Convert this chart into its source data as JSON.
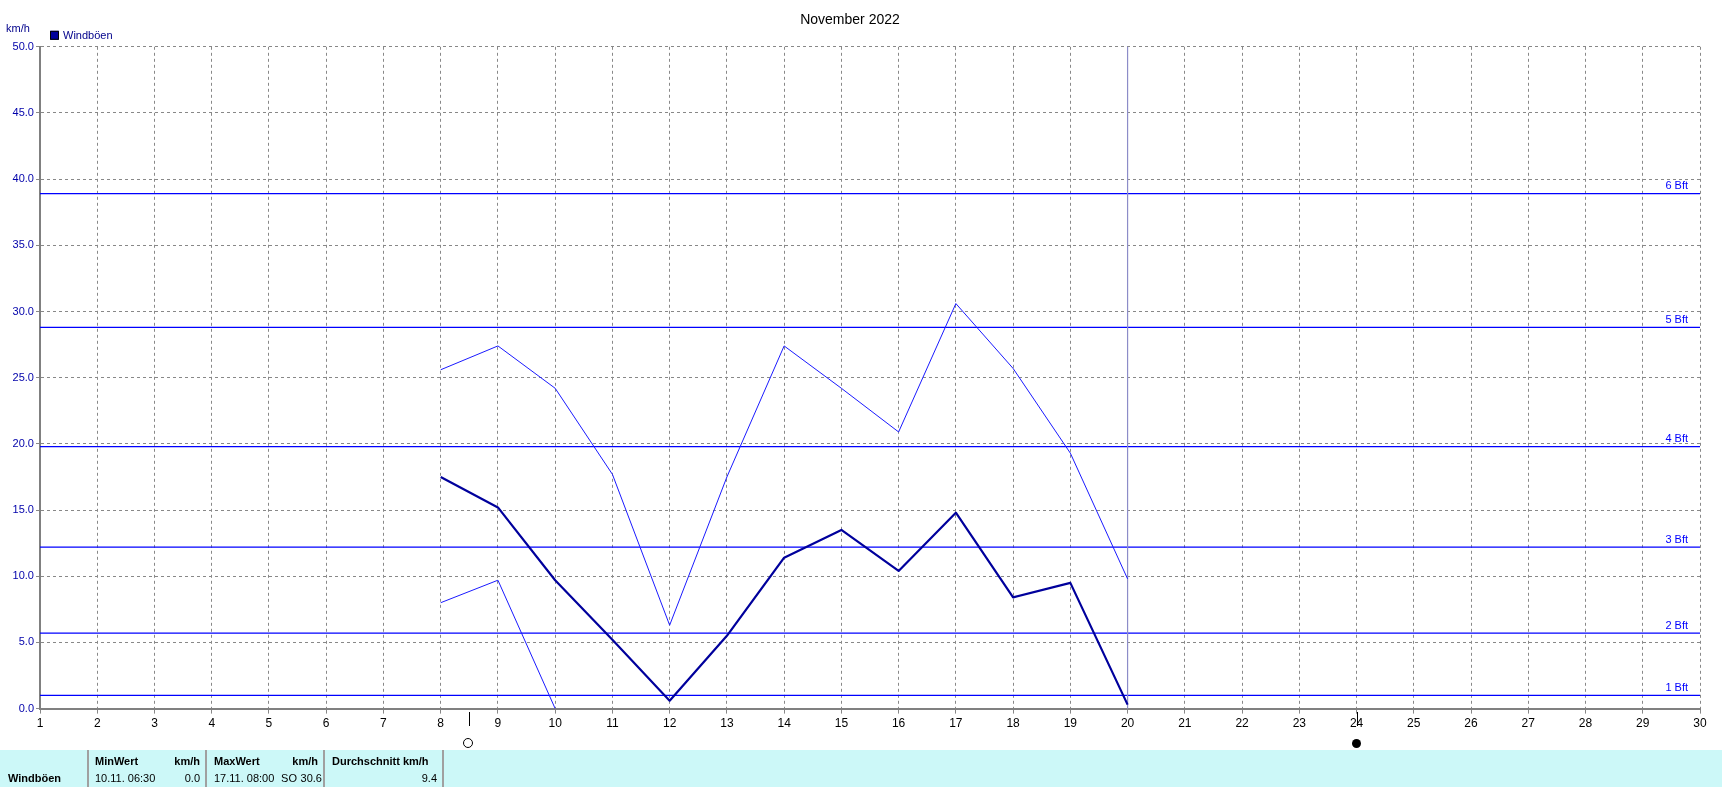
{
  "chart_data": {
    "type": "line",
    "title": "November 2022",
    "ylabel": "km/h",
    "x": [
      8,
      9,
      10,
      11,
      12,
      13,
      14,
      15,
      16,
      17,
      18,
      19,
      20
    ],
    "series": [
      {
        "color": "#1a1aff",
        "values": [
          25.6,
          27.4,
          24.2,
          17.7,
          6.3,
          17.5,
          27.4,
          24.2,
          20.9,
          30.6,
          25.7,
          19.3,
          9.8
        ]
      },
      {
        "name": "Windböen",
        "color": "#00009c",
        "values": [
          17.5,
          15.2,
          9.7,
          5.2,
          0.6,
          5.5,
          11.4,
          13.5,
          10.4,
          14.8,
          8.4,
          9.5,
          0.3
        ]
      },
      {
        "color": "#1a1aff",
        "x": [
          8,
          9,
          10
        ],
        "values": [
          8.0,
          9.7,
          0.0
        ]
      }
    ],
    "xlim": [
      1,
      30
    ],
    "xticks": [
      1,
      2,
      3,
      4,
      5,
      6,
      7,
      8,
      9,
      10,
      11,
      12,
      13,
      14,
      15,
      16,
      17,
      18,
      19,
      20,
      21,
      22,
      23,
      24,
      25,
      26,
      27,
      28,
      29,
      30
    ],
    "ylim": [
      0,
      50
    ],
    "yticks": [
      {
        "value": 0,
        "label": "0.0"
      },
      {
        "value": 5,
        "label": "5.0"
      },
      {
        "value": 10,
        "label": "10.0"
      },
      {
        "value": 15,
        "label": "15.0"
      },
      {
        "value": 20,
        "label": "20.0"
      },
      {
        "value": 25,
        "label": "25.0"
      },
      {
        "value": 30,
        "label": "30.0"
      },
      {
        "value": 35,
        "label": "35.0"
      },
      {
        "value": 40,
        "label": "40.0"
      },
      {
        "value": 45,
        "label": "45.0"
      },
      {
        "value": 50,
        "label": "50.0"
      }
    ],
    "ref_lines": [
      {
        "axis": "y",
        "value": 1.0,
        "label": "1 Bft",
        "color": "#0000ff"
      },
      {
        "axis": "y",
        "value": 5.7,
        "label": "2 Bft",
        "color": "#0000ff"
      },
      {
        "axis": "y",
        "value": 12.2,
        "label": "3 Bft",
        "color": "#0000ff"
      },
      {
        "axis": "y",
        "value": 19.8,
        "label": "4 Bft",
        "color": "#0000ff"
      },
      {
        "axis": "y",
        "value": 28.8,
        "label": "5 Bft",
        "color": "#0000ff"
      },
      {
        "axis": "y",
        "value": 38.9,
        "label": "6 Bft",
        "color": "#0000ff"
      },
      {
        "axis": "x",
        "value": 20,
        "color": "#8c8cc8"
      }
    ],
    "grid": true,
    "legend": "top left",
    "marker": "none",
    "line_style": "solid",
    "annotations": [
      "Windböen",
      "MinWert",
      "km/h",
      "10.11.  06:30",
      "0.0",
      "MaxWert",
      "km/h",
      "17.11.  08:00",
      "SO",
      "30.6",
      "Durchschnitt km/h",
      "9.4"
    ]
  }
}
